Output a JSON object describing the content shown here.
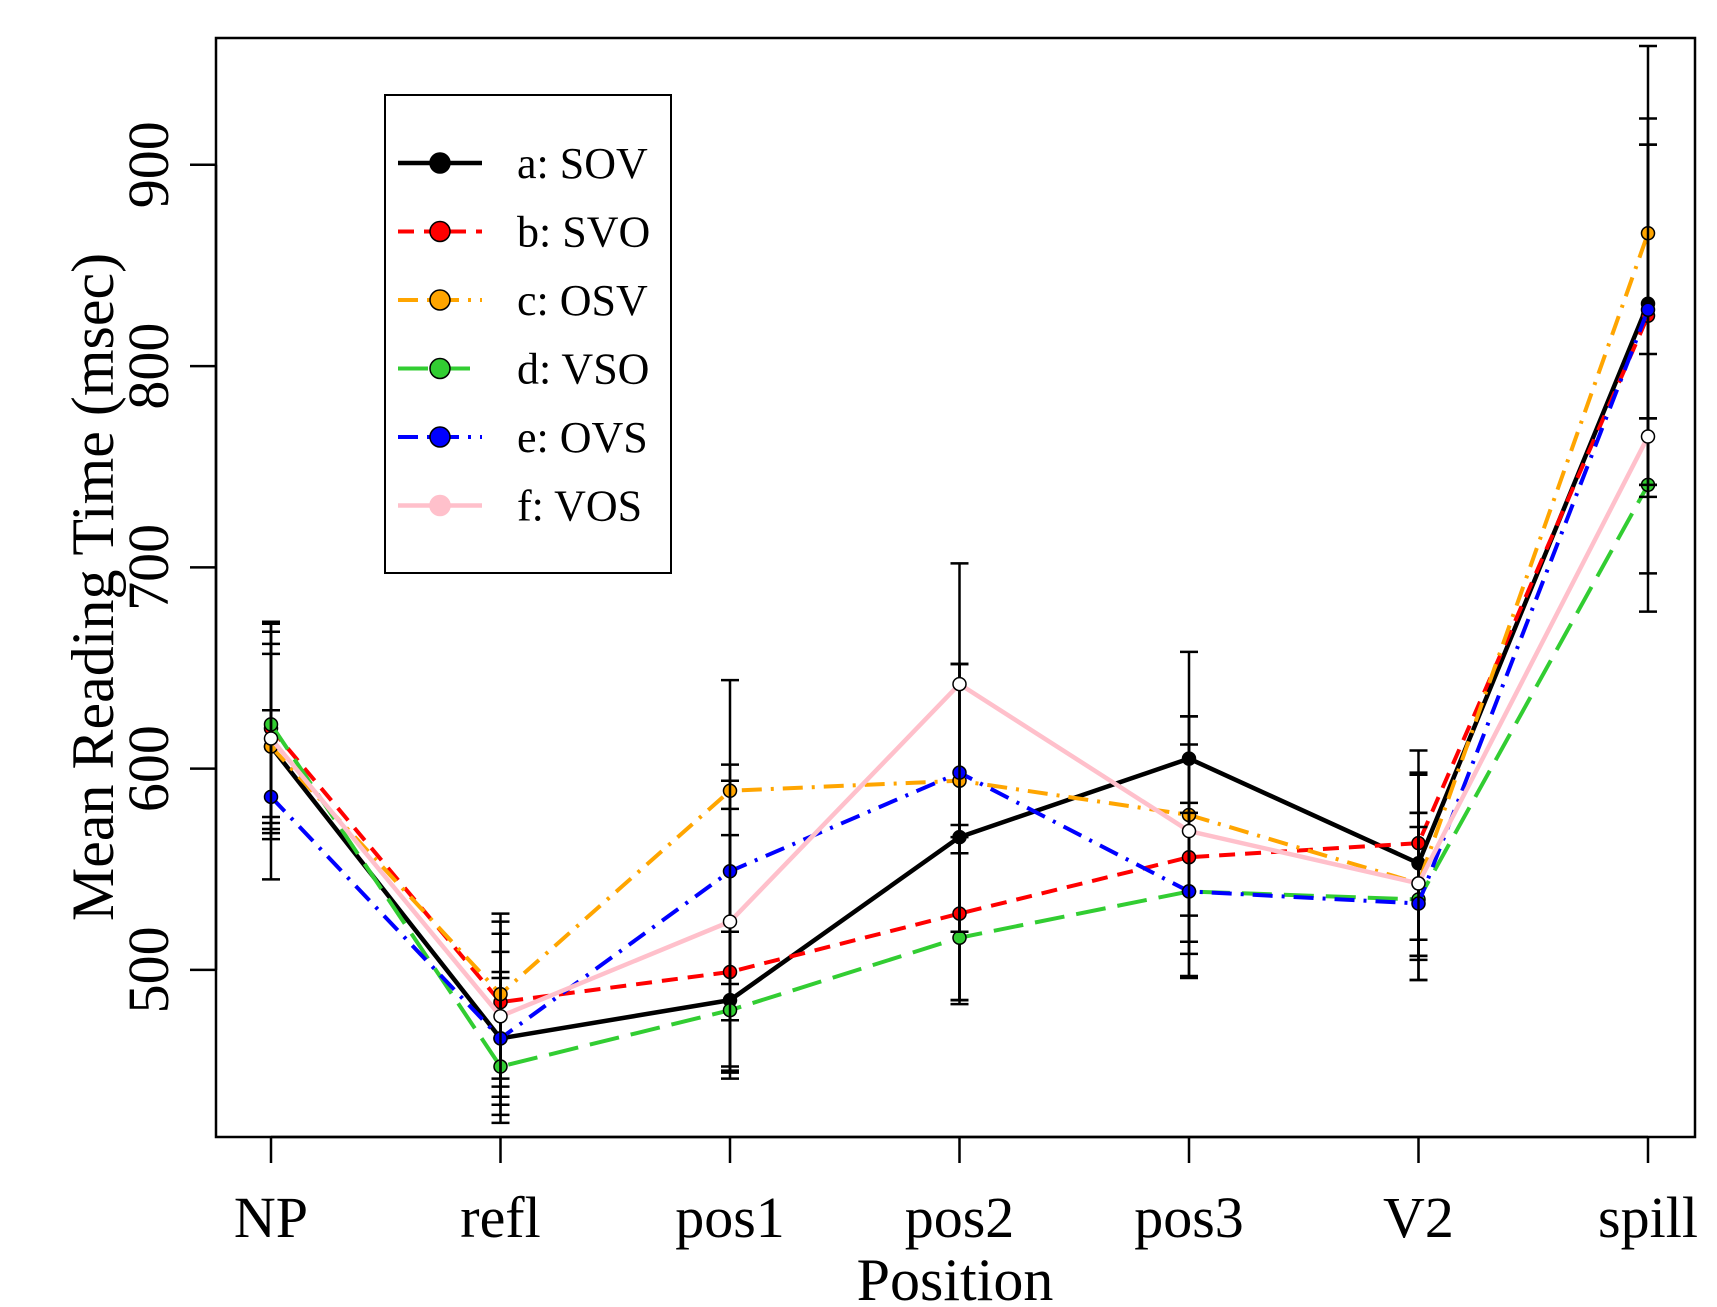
{
  "chart_data": {
    "type": "line",
    "xlabel": "Position",
    "ylabel": "Mean Reading Time (msec)",
    "categories": [
      "NP",
      "refl",
      "pos1",
      "pos2",
      "pos3",
      "V2",
      "spill"
    ],
    "yticks": [
      500,
      600,
      700,
      800,
      900
    ],
    "ylim": [
      417,
      963
    ],
    "legend_position": "top-left",
    "error_bars": true,
    "series": [
      {
        "name": "a: SOV",
        "color": "#000000",
        "dash": "solid",
        "marker": "filled",
        "values": [
          611,
          466,
          485,
          566,
          605,
          553,
          831
        ],
        "lower": [
          565,
          433,
          452,
          485,
          514,
          507,
          697
        ],
        "upper": [
          657,
          499,
          602,
          652,
          626,
          597,
          923
        ]
      },
      {
        "name": "b: SVO",
        "color": "#ff0000",
        "dash": "dash",
        "marker": "filled",
        "values": [
          620,
          484,
          499,
          528,
          556,
          563,
          825
        ],
        "lower": [
          573,
          442,
          449,
          485,
          496,
          507,
          741
        ],
        "upper": [
          668,
          524,
          567,
          572,
          612,
          609,
          910
        ]
      },
      {
        "name": "c: OSV",
        "color": "#ffa500",
        "dash": "dashdot",
        "marker": "filled",
        "values": [
          611,
          488,
          589,
          594,
          577,
          543,
          866
        ],
        "lower": [
          570,
          446,
          450,
          483,
          527,
          495,
          774
        ],
        "upper": [
          672,
          528,
          644,
          702,
          658,
          598,
          959
        ]
      },
      {
        "name": "d: VSO",
        "color": "#32cd32",
        "dash": "longdash",
        "marker": "filled",
        "values": [
          622,
          452,
          480,
          516,
          539,
          535,
          741
        ],
        "lower": [
          576,
          424,
          446,
          485,
          497,
          505,
          678
        ],
        "upper": [
          673,
          496,
          519,
          558,
          583,
          578,
          806
        ]
      },
      {
        "name": "e: OVS",
        "color": "#0000ff",
        "dash": "dashdot",
        "marker": "filled",
        "values": [
          586,
          466,
          549,
          598,
          539,
          533,
          828
        ],
        "lower": [
          545,
          428,
          493,
          519,
          508,
          495,
          741
        ],
        "upper": [
          629,
          509,
          594,
          652,
          578,
          571,
          910
        ]
      },
      {
        "name": "f: VOS",
        "color": "#ffc0cb",
        "dash": "solid",
        "marker": "open",
        "values": [
          615,
          477,
          524,
          642,
          569,
          543,
          765
        ],
        "lower": [
          568,
          437,
          475,
          566,
          514,
          515,
          735
        ],
        "upper": [
          662,
          518,
          580,
          652,
          626,
          578,
          774
        ]
      }
    ]
  }
}
